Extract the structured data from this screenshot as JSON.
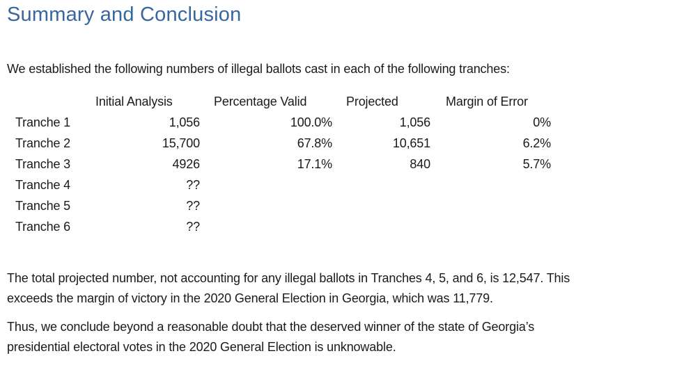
{
  "document": {
    "heading": "Summary and Conclusion",
    "intro_paragraph": "We established the following numbers of illegal ballots cast in each of the following tranches:",
    "table": {
      "headers": [
        "Initial Analysis",
        "Percentage Valid",
        "Projected",
        "Margin of Error"
      ],
      "rows": [
        {
          "label": "Tranche 1",
          "initial_analysis": "1,056",
          "percentage_valid": "100.0%",
          "projected": "1,056",
          "margin_of_error": "0%"
        },
        {
          "label": "Tranche 2",
          "initial_analysis": "15,700",
          "percentage_valid": "67.8%",
          "projected": "10,651",
          "margin_of_error": "6.2%"
        },
        {
          "label": "Tranche 3",
          "initial_analysis": "4926",
          "percentage_valid": "17.1%",
          "projected": "840",
          "margin_of_error": "5.7%"
        },
        {
          "label": "Tranche 4",
          "initial_analysis": "??",
          "percentage_valid": "",
          "projected": "",
          "margin_of_error": ""
        },
        {
          "label": "Tranche 5",
          "initial_analysis": "??",
          "percentage_valid": "",
          "projected": "",
          "margin_of_error": ""
        },
        {
          "label": "Tranche 6",
          "initial_analysis": "??",
          "percentage_valid": "",
          "projected": "",
          "margin_of_error": ""
        }
      ]
    },
    "projection_paragraph": "The total projected number, not accounting for any illegal ballots in Tranches 4, 5, and 6, is 12,547. This\nexceeds the margin of victory in the 2020 General Election in Georgia, which was 11,779.",
    "conclusion_paragraph": "Thus, we conclude beyond a reasonable doubt that the deserved winner of the state of Georgia’s\npresidential electoral votes in the 2020 General Election is unknowable.",
    "colors": {
      "heading_text": "#38679E",
      "body_text": "#1A1A1A",
      "page_background": "#FFFFFF"
    }
  }
}
